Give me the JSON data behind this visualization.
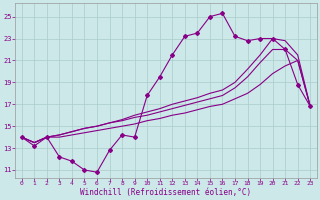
{
  "xlabel": "Windchill (Refroidissement éolien,°C)",
  "bg_color": "#cce8e8",
  "line_color": "#880088",
  "grid_color": "#aacccc",
  "xlim_min": -0.5,
  "xlim_max": 23.5,
  "ylim_min": 10.3,
  "ylim_max": 26.2,
  "xticks": [
    0,
    1,
    2,
    3,
    4,
    5,
    6,
    7,
    8,
    9,
    10,
    11,
    12,
    13,
    14,
    15,
    16,
    17,
    18,
    19,
    20,
    21,
    22,
    23
  ],
  "yticks": [
    11,
    13,
    15,
    17,
    19,
    21,
    23,
    25
  ],
  "curve_jagged_x": [
    0,
    1,
    2,
    3,
    4,
    5,
    6,
    7,
    8,
    9,
    10,
    11,
    12,
    13,
    14,
    15,
    16,
    17,
    18,
    19,
    20,
    21,
    22,
    23
  ],
  "curve_jagged_y": [
    14.0,
    13.2,
    14.0,
    12.2,
    11.8,
    11.0,
    10.8,
    12.8,
    14.2,
    14.0,
    17.8,
    19.5,
    21.5,
    23.2,
    23.5,
    25.0,
    25.3,
    23.2,
    22.8,
    23.0,
    23.0,
    22.0,
    18.8,
    16.8
  ],
  "curve_top_x": [
    0,
    1,
    2,
    3,
    4,
    5,
    6,
    7,
    8,
    9,
    10,
    11,
    12,
    13,
    14,
    15,
    16,
    17,
    18,
    19,
    20,
    21,
    22,
    23
  ],
  "curve_top_y": [
    14.0,
    13.5,
    14.0,
    14.2,
    14.5,
    14.8,
    15.0,
    15.3,
    15.6,
    16.0,
    16.3,
    16.6,
    17.0,
    17.3,
    17.6,
    18.0,
    18.3,
    19.0,
    20.2,
    21.5,
    23.0,
    22.8,
    21.5,
    16.8
  ],
  "curve_mid_x": [
    0,
    1,
    2,
    3,
    4,
    5,
    6,
    7,
    8,
    9,
    10,
    11,
    12,
    13,
    14,
    15,
    16,
    17,
    18,
    19,
    20,
    21,
    22,
    23
  ],
  "curve_mid_y": [
    14.0,
    13.5,
    14.0,
    14.2,
    14.5,
    14.8,
    15.0,
    15.3,
    15.5,
    15.8,
    16.0,
    16.3,
    16.6,
    16.9,
    17.2,
    17.5,
    17.8,
    18.5,
    19.5,
    20.8,
    22.0,
    22.0,
    21.0,
    16.8
  ],
  "curve_bot_x": [
    0,
    1,
    2,
    3,
    4,
    5,
    6,
    7,
    8,
    9,
    10,
    11,
    12,
    13,
    14,
    15,
    16,
    17,
    18,
    19,
    20,
    21,
    22,
    23
  ],
  "curve_bot_y": [
    14.0,
    13.5,
    14.0,
    14.0,
    14.2,
    14.4,
    14.6,
    14.8,
    15.0,
    15.2,
    15.5,
    15.7,
    16.0,
    16.2,
    16.5,
    16.8,
    17.0,
    17.5,
    18.0,
    18.8,
    19.8,
    20.5,
    21.0,
    16.8
  ]
}
